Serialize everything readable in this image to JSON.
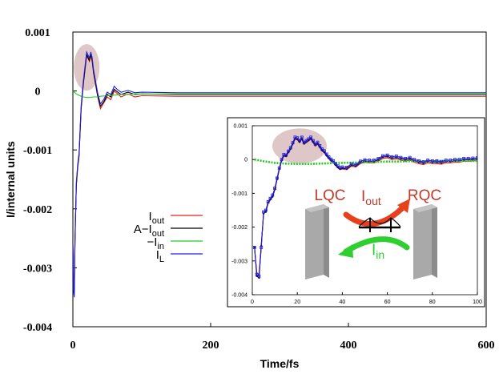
{
  "chart_data": [
    {
      "id": "main",
      "type": "line",
      "title": "",
      "xlabel": "Time/fs",
      "ylabel": "I/internal units",
      "xlim": [
        0,
        600
      ],
      "ylim": [
        -0.004,
        0.001
      ],
      "xticks": [
        0,
        200,
        400,
        600
      ],
      "xtick_labels": [
        "0",
        "200",
        "400",
        "600"
      ],
      "yticks": [
        0.001,
        0,
        -0.001,
        -0.002,
        -0.003,
        -0.004
      ],
      "ytick_labels": [
        "0.001",
        "0",
        "-0.001",
        "-0.002",
        "-0.003",
        "-0.004"
      ],
      "legend_position": "center-left",
      "series": [
        {
          "name": "I_out",
          "color": "#e02020",
          "x": [
            0,
            1,
            2,
            3,
            5,
            7,
            9,
            12,
            15,
            18,
            20,
            22,
            24,
            26,
            28,
            30,
            33,
            36,
            40,
            45,
            50,
            55,
            60,
            65,
            70,
            80,
            90,
            100,
            150,
            200,
            300,
            400,
            500,
            600
          ],
          "y": [
            -0.0026,
            -0.0033,
            -0.0034,
            -0.0025,
            -0.0016,
            -0.0013,
            -0.0011,
            -0.0003,
            0.0001,
            0.0004,
            0.0006,
            0.00055,
            0.0005,
            0.0006,
            0.0005,
            0.0003,
            0.0001,
            -0.0001,
            -0.0003,
            -0.0002,
            -0.0001,
            -0.00015,
            0.0,
            -5e-05,
            -0.0001,
            -5e-05,
            -0.0001,
            -8e-05,
            -9e-05,
            -9e-05,
            -9e-05,
            -9e-05,
            -9e-05,
            -9e-05
          ]
        },
        {
          "name": "A-I_out",
          "color": "#000000",
          "x": [
            0,
            1,
            2,
            3,
            5,
            7,
            9,
            12,
            15,
            18,
            20,
            22,
            24,
            26,
            28,
            30,
            33,
            36,
            40,
            45,
            50,
            55,
            60,
            65,
            70,
            80,
            90,
            100,
            150,
            200,
            300,
            400,
            500,
            600
          ],
          "y": [
            -0.0026,
            -0.00335,
            -0.00345,
            -0.00255,
            -0.0016,
            -0.00128,
            -0.0011,
            -0.0003,
            0.0001,
            0.00042,
            0.00062,
            0.00057,
            0.00052,
            0.00062,
            0.00052,
            0.00032,
            0.00012,
            -8e-05,
            -0.00026,
            -0.00018,
            -6e-05,
            -0.0001,
            3e-05,
            -2e-05,
            -6e-05,
            -2e-05,
            -6e-05,
            -5e-05,
            -6e-05,
            -6e-05,
            -6e-05,
            -6e-05,
            -6e-05,
            -6e-05
          ]
        },
        {
          "name": "-I_in",
          "color": "#22cc22",
          "x": [
            0,
            5,
            10,
            15,
            20,
            25,
            30,
            35,
            40,
            50,
            60,
            70,
            80,
            90,
            100,
            150,
            200,
            300,
            400,
            500,
            600
          ],
          "y": [
            0.0,
            -5e-05,
            -8e-05,
            -0.0001,
            -0.00011,
            -0.00011,
            -0.0001,
            -0.0001,
            -9e-05,
            -8e-05,
            -7e-05,
            -6e-05,
            -6e-05,
            -5e-05,
            -5e-05,
            -5e-05,
            -5e-05,
            -5e-05,
            -5e-05,
            -5e-05,
            -5e-05
          ]
        },
        {
          "name": "I_L",
          "color": "#2020e0",
          "x": [
            0,
            1,
            2,
            3,
            5,
            7,
            9,
            12,
            15,
            18,
            20,
            22,
            24,
            26,
            28,
            30,
            33,
            36,
            40,
            45,
            50,
            55,
            60,
            65,
            70,
            80,
            90,
            100,
            150,
            200,
            300,
            400,
            500,
            600
          ],
          "y": [
            -0.0026,
            -0.0034,
            -0.0035,
            -0.0026,
            -0.00155,
            -0.00125,
            -0.00105,
            -0.00025,
            0.00015,
            0.00046,
            0.00066,
            0.00061,
            0.00056,
            0.00066,
            0.00056,
            0.00036,
            0.00016,
            -4e-05,
            -0.00022,
            -0.00014,
            -2e-05,
            -6e-05,
            8e-05,
            2e-05,
            -2e-05,
            1e-05,
            -3e-05,
            -2e-05,
            -3e-05,
            -3e-05,
            -3e-05,
            -3e-05,
            -3e-05,
            -3e-05
          ]
        }
      ],
      "highlight": {
        "x": 20,
        "y": 0.0004
      }
    },
    {
      "id": "inset",
      "type": "line",
      "title": "",
      "xlabel": "",
      "ylabel": "",
      "xlim": [
        0,
        100
      ],
      "ylim": [
        -0.004,
        0.001
      ],
      "xticks": [
        0,
        20,
        40,
        60,
        80,
        100
      ],
      "xtick_labels": [
        "0",
        "20",
        "40",
        "60",
        "80",
        "100"
      ],
      "yticks": [
        0.001,
        0,
        -0.001,
        -0.002,
        -0.003,
        -0.004
      ],
      "ytick_labels": [
        "0.001",
        "0",
        "-0.001",
        "-0.002",
        "-0.003",
        "-0.004"
      ],
      "series": [
        {
          "name": "I_out",
          "color": "#e02020",
          "x": [
            1,
            2,
            3,
            4,
            5,
            6,
            7,
            8,
            9,
            10,
            11,
            12,
            13,
            14,
            15,
            16,
            17,
            18,
            19,
            20,
            21,
            22,
            23,
            24,
            25,
            26,
            27,
            28,
            29,
            30,
            31,
            32,
            33,
            34,
            35,
            36,
            37,
            38,
            39,
            40,
            42,
            44,
            46,
            48,
            50,
            52,
            54,
            56,
            58,
            60,
            62,
            64,
            66,
            68,
            70,
            72,
            74,
            76,
            78,
            80,
            82,
            84,
            86,
            88,
            90,
            92,
            94,
            96,
            98,
            100
          ],
          "y": [
            -0.0026,
            -0.00335,
            -0.0034,
            -0.0025,
            -0.0016,
            -0.00155,
            -0.0013,
            -0.0012,
            -0.0011,
            -0.0009,
            -0.0006,
            -0.0003,
            -5e-05,
            0.0001,
            8e-05,
            0.0002,
            0.0003,
            0.00045,
            0.0006,
            0.00058,
            0.0005,
            0.0006,
            0.00045,
            0.0005,
            0.00055,
            0.0006,
            0.0005,
            0.0004,
            0.00045,
            0.00035,
            0.00025,
            0.0002,
            0.0001,
            2e-05,
            -5e-05,
            -0.0001,
            -0.00018,
            -0.00025,
            -0.0003,
            -0.00028,
            -0.0003,
            -0.0002,
            -0.00022,
            -0.00012,
            -8e-05,
            -0.0001,
            -0.0001,
            -5e-05,
            3e-05,
            5e-05,
            0.0,
            2e-05,
            -2e-05,
            -5e-05,
            -2e-05,
            -8e-05,
            -0.00012,
            -0.00015,
            -0.0001,
            -0.00012,
            -0.00012,
            -0.00014,
            -0.0001,
            -0.0001,
            -8e-05,
            -8e-05,
            -5e-05,
            -5e-05,
            -4e-05,
            -3e-05
          ]
        },
        {
          "name": "A-I_out",
          "color": "#000000",
          "x": [
            1,
            2,
            3,
            4,
            5,
            6,
            7,
            8,
            9,
            10,
            11,
            12,
            13,
            14,
            15,
            16,
            17,
            18,
            19,
            20,
            21,
            22,
            23,
            24,
            25,
            26,
            27,
            28,
            29,
            30,
            31,
            32,
            33,
            34,
            35,
            36,
            37,
            38,
            39,
            40,
            42,
            44,
            46,
            48,
            50,
            52,
            54,
            56,
            58,
            60,
            62,
            64,
            66,
            68,
            70,
            72,
            74,
            76,
            78,
            80,
            82,
            84,
            86,
            88,
            90,
            92,
            94,
            96,
            98,
            100
          ],
          "y": [
            -0.0026,
            -0.00345,
            -0.0035,
            -0.00255,
            -0.0016,
            -0.00155,
            -0.00128,
            -0.00118,
            -0.0011,
            -0.00088,
            -0.00058,
            -0.00028,
            -3e-05,
            0.00012,
            0.0001,
            0.00022,
            0.00032,
            0.00047,
            0.00062,
            0.0006,
            0.00052,
            0.00062,
            0.00047,
            0.00052,
            0.00057,
            0.00062,
            0.00052,
            0.00042,
            0.00047,
            0.00037,
            0.00027,
            0.00022,
            0.00012,
            4e-05,
            -3e-05,
            -8e-05,
            -0.00016,
            -0.00023,
            -0.00028,
            -0.00026,
            -0.00027,
            -0.00017,
            -0.00019,
            -9e-05,
            -5e-05,
            -6e-05,
            -6e-05,
            -1e-05,
            7e-05,
            9e-05,
            4e-05,
            6e-05,
            2e-05,
            -1e-05,
            2e-05,
            -4e-05,
            -8e-05,
            -0.00011,
            -6e-05,
            -8e-05,
            -8e-05,
            -0.0001,
            -6e-05,
            -6e-05,
            -4e-05,
            -4e-05,
            -1e-05,
            -1e-05,
            0.0,
            1e-05
          ]
        },
        {
          "name": "-I_in",
          "color": "#22cc22",
          "x": [
            1,
            5,
            10,
            15,
            20,
            25,
            30,
            35,
            40,
            45,
            50,
            55,
            60,
            65,
            70,
            75,
            80,
            85,
            90,
            95,
            100
          ],
          "y": [
            0.0,
            -5e-05,
            -0.0001,
            -0.00012,
            -0.00013,
            -0.00013,
            -0.00012,
            -0.00011,
            -0.0001,
            -9e-05,
            -8e-05,
            -7e-05,
            -6e-05,
            -6e-05,
            -5e-05,
            -5e-05,
            -5e-05,
            -4e-05,
            -4e-05,
            -4e-05,
            -4e-05
          ]
        },
        {
          "name": "I_L",
          "color": "#2020e0",
          "x": [
            1,
            2,
            3,
            4,
            5,
            6,
            7,
            8,
            9,
            10,
            11,
            12,
            13,
            14,
            15,
            16,
            17,
            18,
            19,
            20,
            21,
            22,
            23,
            24,
            25,
            26,
            27,
            28,
            29,
            30,
            31,
            32,
            33,
            34,
            35,
            36,
            37,
            38,
            39,
            40,
            42,
            44,
            46,
            48,
            50,
            52,
            54,
            56,
            58,
            60,
            62,
            64,
            66,
            68,
            70,
            72,
            74,
            76,
            78,
            80,
            82,
            84,
            86,
            88,
            90,
            92,
            94,
            96,
            98,
            100
          ],
          "y": [
            -0.0026,
            -0.0034,
            -0.00345,
            -0.0026,
            -0.00155,
            -0.0015,
            -0.00125,
            -0.00115,
            -0.00105,
            -0.00085,
            -0.00055,
            -0.00025,
            0.0,
            0.00015,
            0.00013,
            0.00025,
            0.00035,
            0.0005,
            0.00066,
            0.00064,
            0.00056,
            0.00066,
            0.00051,
            0.00056,
            0.00061,
            0.00066,
            0.00056,
            0.00046,
            0.00051,
            0.00041,
            0.00031,
            0.00026,
            0.00016,
            8e-05,
            1e-05,
            -4e-05,
            -0.00012,
            -0.00019,
            -0.00024,
            -0.00022,
            -0.00023,
            -0.00013,
            -0.00015,
            -5e-05,
            -1e-05,
            -2e-05,
            -2e-05,
            3e-05,
            0.00011,
            0.00013,
            8e-05,
            0.0001,
            6e-05,
            3e-05,
            6e-05,
            0.0,
            -4e-05,
            -7e-05,
            -2e-05,
            -4e-05,
            -4e-05,
            -6e-05,
            -2e-05,
            -2e-05,
            0.0,
            0.0,
            3e-05,
            3e-05,
            4e-05,
            5e-05
          ]
        }
      ],
      "highlight": {
        "x": 21,
        "y": 0.0004
      }
    }
  ],
  "legend": [
    {
      "prefix": "I",
      "sub": "out",
      "color": "#e02020"
    },
    {
      "prefix": "A−I",
      "sub": "out",
      "color": "#000000"
    },
    {
      "prefix": "−I",
      "sub": "in",
      "color": "#22cc22"
    },
    {
      "prefix": "I",
      "sub": "L",
      "color": "#2020e0"
    }
  ],
  "diagram": {
    "left_label": "LQC",
    "right_label": "RQC",
    "out_label": "I",
    "out_sub": "out",
    "in_label": "I",
    "in_sub": "in",
    "label_color": "#c0392b",
    "out_color": "#e8401c",
    "in_color": "#2fcf2f"
  }
}
